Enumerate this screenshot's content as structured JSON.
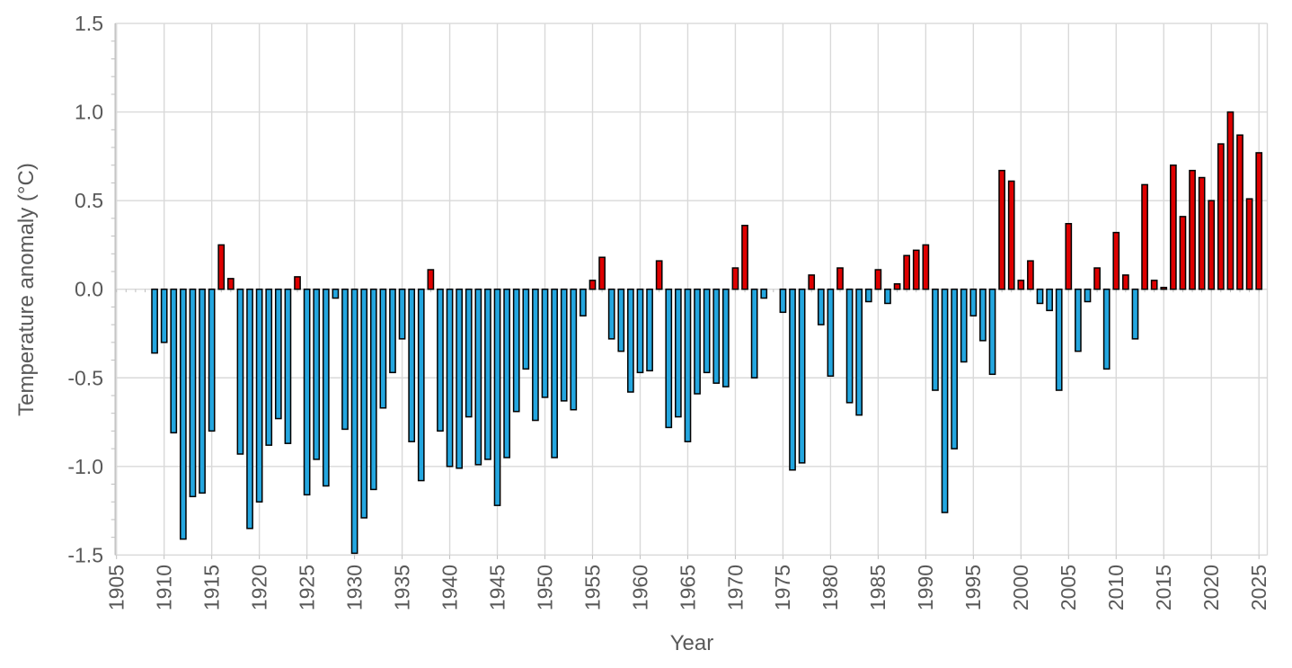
{
  "page": {
    "background": "#ffffff"
  },
  "figure": {
    "x_axis_title": "Year",
    "y_axis_title": "Temperature anomaly (°C)"
  },
  "chart_data": {
    "type": "bar",
    "title": "",
    "xlabel": "Year",
    "ylabel": "Temperature anomaly (°C)",
    "ylim": [
      -1.5,
      1.5
    ],
    "xlim": [
      1905,
      2026
    ],
    "grid": true,
    "legend": false,
    "y_tick_values": [
      1.5,
      1.0,
      0.5,
      0.0,
      -0.5,
      -1.0,
      -1.5
    ],
    "y_tick_labels": [
      "1.5",
      "1.0",
      "0.5",
      "0.0",
      "-0.5",
      "-1.0",
      "-1.5"
    ],
    "y_minor_tick_step": 0.1,
    "x_tick_values": [
      1905,
      1910,
      1915,
      1920,
      1925,
      1930,
      1935,
      1940,
      1945,
      1950,
      1955,
      1960,
      1965,
      1970,
      1975,
      1980,
      1985,
      1990,
      1995,
      2000,
      2005,
      2010,
      2015,
      2020,
      2025
    ],
    "x_tick_labels": [
      "1905",
      "1910",
      "1915",
      "1920",
      "1925",
      "1930",
      "1935",
      "1940",
      "1945",
      "1950",
      "1955",
      "1960",
      "1965",
      "1970",
      "1975",
      "1980",
      "1985",
      "1990",
      "1995",
      "2000",
      "2005",
      "2010",
      "2015",
      "2020",
      "2025"
    ],
    "bar_color_positive": "#DE0000",
    "bar_color_negative": "#24A6DF",
    "bar_outline_color": "#000000",
    "gridline_color": "#D9D9D9",
    "axis_color": "#BFBFBF",
    "text_color": "#595959",
    "years": [
      1909,
      1910,
      1911,
      1912,
      1913,
      1914,
      1915,
      1916,
      1917,
      1918,
      1919,
      1920,
      1921,
      1922,
      1923,
      1924,
      1925,
      1926,
      1927,
      1928,
      1929,
      1930,
      1931,
      1932,
      1933,
      1934,
      1935,
      1936,
      1937,
      1938,
      1939,
      1940,
      1941,
      1942,
      1943,
      1944,
      1945,
      1946,
      1947,
      1948,
      1949,
      1950,
      1951,
      1952,
      1953,
      1954,
      1955,
      1956,
      1957,
      1958,
      1959,
      1960,
      1961,
      1962,
      1963,
      1964,
      1965,
      1966,
      1967,
      1968,
      1969,
      1970,
      1971,
      1972,
      1973,
      1974,
      1975,
      1976,
      1977,
      1978,
      1979,
      1980,
      1981,
      1982,
      1983,
      1984,
      1985,
      1986,
      1987,
      1988,
      1989,
      1990,
      1991,
      1992,
      1993,
      1994,
      1995,
      1996,
      1997,
      1998,
      1999,
      2000,
      2001,
      2002,
      2003,
      2004,
      2005,
      2006,
      2007,
      2008,
      2009,
      2010,
      2011,
      2012,
      2013,
      2014,
      2015,
      2016,
      2017,
      2018,
      2019,
      2020,
      2021,
      2022,
      2023,
      2024,
      2025
    ],
    "values": [
      -0.36,
      -0.3,
      -0.81,
      -1.41,
      -1.17,
      -1.15,
      -0.8,
      0.25,
      0.06,
      -0.93,
      -1.35,
      -1.2,
      -0.88,
      -0.73,
      -0.87,
      0.07,
      -1.16,
      -0.96,
      -1.11,
      -0.05,
      -0.79,
      -1.49,
      -1.29,
      -1.13,
      -0.67,
      -0.47,
      -0.28,
      -0.86,
      -1.08,
      0.11,
      -0.8,
      -1.0,
      -1.01,
      -0.72,
      -0.99,
      -0.96,
      -1.22,
      -0.95,
      -0.69,
      -0.45,
      -0.74,
      -0.61,
      -0.95,
      -0.63,
      -0.68,
      -0.15,
      0.05,
      0.18,
      -0.28,
      -0.35,
      -0.58,
      -0.47,
      -0.46,
      0.16,
      -0.78,
      -0.72,
      -0.86,
      -0.59,
      -0.47,
      -0.53,
      -0.55,
      0.12,
      0.36,
      -0.5,
      -0.05,
      0.0,
      -0.13,
      -1.02,
      -0.98,
      0.08,
      -0.2,
      -0.49,
      0.12,
      -0.64,
      -0.71,
      -0.07,
      0.11,
      -0.08,
      0.03,
      0.19,
      0.22,
      0.25,
      -0.57,
      -1.26,
      -0.9,
      -0.41,
      -0.15,
      -0.29,
      -0.48,
      0.67,
      0.61,
      0.05,
      0.16,
      -0.08,
      -0.12,
      -0.57,
      0.37,
      -0.35,
      -0.07,
      0.12,
      -0.45,
      0.32,
      0.08,
      -0.28,
      0.59,
      0.05,
      0.01,
      0.7,
      0.41,
      0.67,
      0.63,
      0.5,
      0.82,
      1.0,
      0.87,
      0.51,
      0.77
    ]
  }
}
